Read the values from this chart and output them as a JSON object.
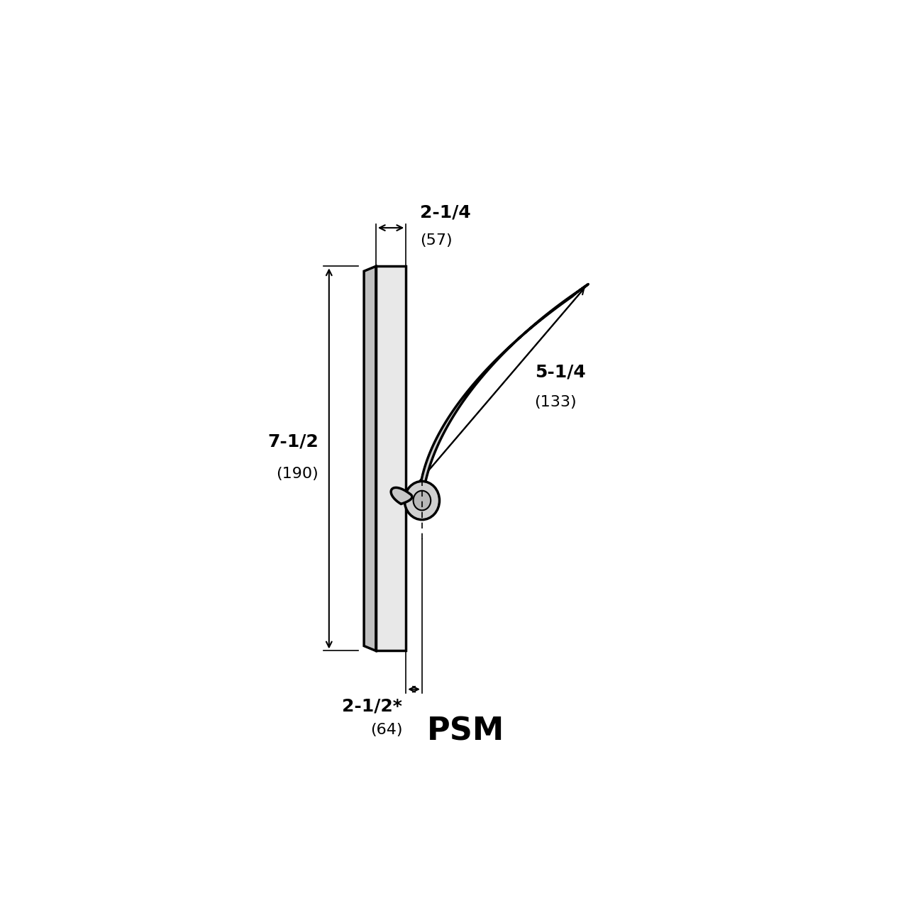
{
  "background_color": "#ffffff",
  "line_color": "#000000",
  "title": "PSM",
  "title_fontsize": 32,
  "title_fontweight": "bold",
  "dim_fontsize": 18,
  "annotations": {
    "top_dim_label": "2-1/4",
    "top_dim_sub": "(57)",
    "left_dim_label": "7-1/2",
    "left_dim_sub": "(190)",
    "bottom_dim_label": "2-1/2*",
    "bottom_dim_sub": "(64)",
    "right_dim_label": "5-1/4",
    "right_dim_sub": "(133)"
  }
}
